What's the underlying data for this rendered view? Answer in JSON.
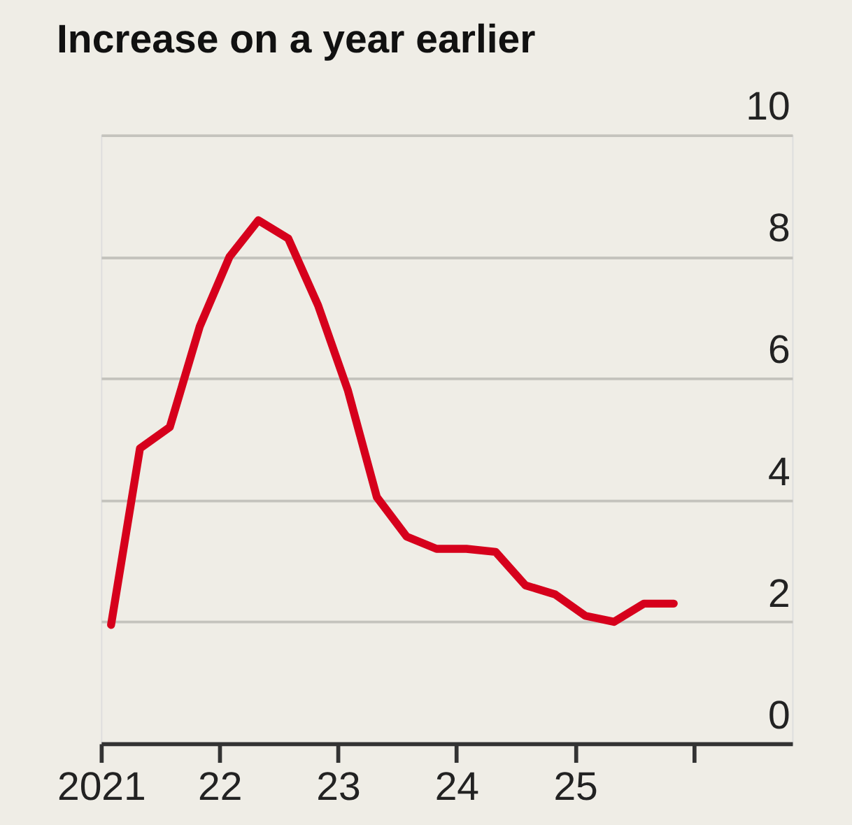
{
  "chart_data": {
    "type": "line",
    "title": "Increase on a year earlier",
    "x": [
      "2021-02",
      "2021-05",
      "2021-08",
      "2021-11",
      "2022-02",
      "2022-05",
      "2022-08",
      "2022-11",
      "2023-02",
      "2023-05",
      "2023-08",
      "2023-11",
      "2024-02",
      "2024-05",
      "2024-08",
      "2024-11",
      "2025-02",
      "2025-05",
      "2025-08",
      "2025-11"
    ],
    "series": [
      {
        "color": "#d6001c",
        "values": [
          1.95,
          4.85,
          5.2,
          6.85,
          8.0,
          8.6,
          8.3,
          7.2,
          5.8,
          4.05,
          3.4,
          3.2,
          3.2,
          3.15,
          2.6,
          2.45,
          2.1,
          2.0,
          2.3,
          2.3
        ]
      }
    ],
    "xlim": [
      "2021-01",
      "2026-11"
    ],
    "xticks": [
      {
        "value": "2021",
        "label": "2021"
      },
      {
        "value": "2022",
        "label": "22"
      },
      {
        "value": "2023",
        "label": "23"
      },
      {
        "value": "2024",
        "label": "24"
      },
      {
        "value": "2025",
        "label": "25"
      },
      {
        "value": "2026",
        "label": null
      }
    ],
    "ylim": [
      0,
      10
    ],
    "yticks": [
      0,
      2,
      4,
      6,
      8,
      10
    ],
    "grid": "y",
    "marker": "none",
    "line_style": "solid"
  }
}
